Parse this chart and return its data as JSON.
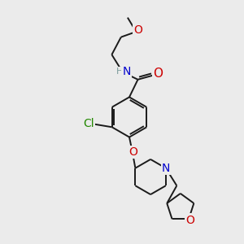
{
  "bg_color": "#ebebeb",
  "bond_color": "#1a1a1a",
  "atom_colors": {
    "O": "#cc0000",
    "N": "#0000cc",
    "Cl": "#228800",
    "H": "#7a9a9a",
    "C": "#1a1a1a"
  },
  "lw": 1.4,
  "fs": 9
}
